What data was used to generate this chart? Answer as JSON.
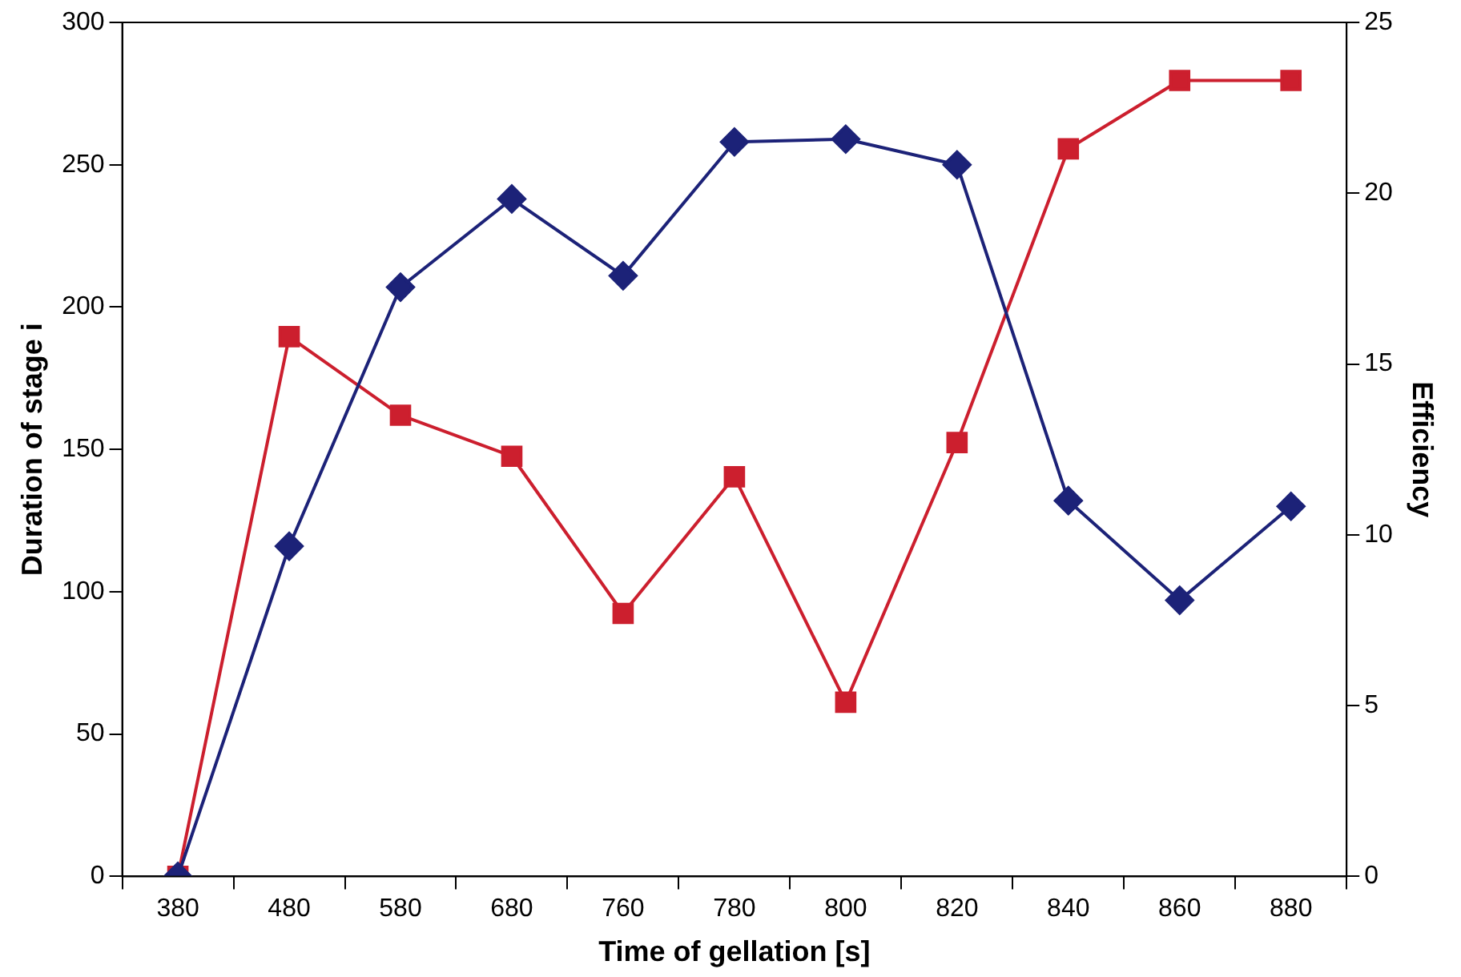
{
  "chart_data": {
    "type": "line",
    "xlabel": "Time of gellation [s]",
    "ylabel": "Duration of stage i",
    "y2label": "Efficiency",
    "categories": [
      "380",
      "480",
      "580",
      "680",
      "760",
      "780",
      "800",
      "820",
      "840",
      "860",
      "880"
    ],
    "series": [
      {
        "color": "#1c2278",
        "marker": "diamond",
        "values": [
          0,
          116,
          207,
          238,
          211,
          258,
          259,
          250,
          132,
          97,
          130
        ]
      },
      {
        "color": "#cc1f2e",
        "marker": "square",
        "axis": "y2",
        "values": [
          0,
          15.8,
          13.5,
          12.3,
          7.7,
          11.7,
          5.1,
          12.7,
          21.3,
          23.3,
          23.3
        ]
      }
    ],
    "ylim": [
      0,
      300
    ],
    "yticks": [
      0,
      50,
      100,
      150,
      200,
      250,
      300
    ],
    "y2lim": [
      0,
      25
    ],
    "y2ticks": [
      0,
      5,
      10,
      15,
      20,
      25
    ],
    "grid": false,
    "legend": false
  }
}
